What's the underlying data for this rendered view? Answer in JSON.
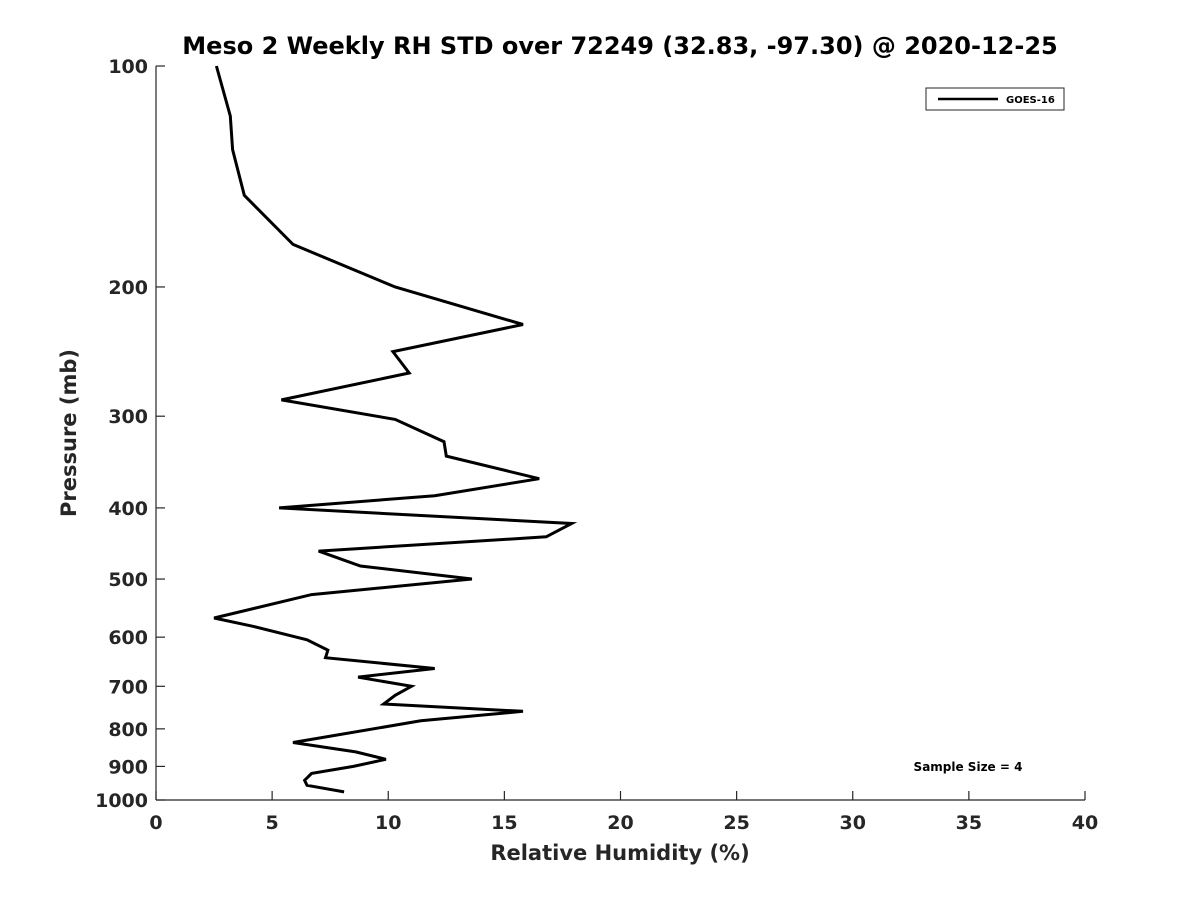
{
  "chart_data": {
    "type": "line",
    "title": "Meso 2 Weekly RH STD over 72249 (32.83, -97.30) @ 2020-12-25",
    "xlabel": "Relative Humidity (%)",
    "ylabel": "Pressure (mb)",
    "xlim": [
      0,
      40
    ],
    "ylim": [
      100,
      1000
    ],
    "yscale": "log",
    "y_reversed": true,
    "x_ticks": [
      "0",
      "5",
      "10",
      "15",
      "20",
      "25",
      "30",
      "35",
      "40"
    ],
    "y_ticks": [
      "100",
      "200",
      "300",
      "400",
      "500",
      "600",
      "700",
      "800",
      "900",
      "1000"
    ],
    "grid": false,
    "legend": {
      "position": "top-right",
      "entries": [
        "GOES-16"
      ]
    },
    "annotation": "Sample Size = 4",
    "colors": {
      "series": "#000000",
      "axes": "#262626"
    },
    "series": [
      {
        "name": "GOES-16",
        "x": [
          2.6,
          3.2,
          3.3,
          3.8,
          5.9,
          10.3,
          15.8,
          10.2,
          10.9,
          5.4,
          10.3,
          12.4,
          12.5,
          16.5,
          12.0,
          5.3,
          17.9,
          16.8,
          7.0,
          8.8,
          13.6,
          6.7,
          2.5,
          4.2,
          6.5,
          7.4,
          7.3,
          12.0,
          8.7,
          11.0,
          10.3,
          9.8,
          15.8,
          11.4,
          5.9,
          8.6,
          9.9,
          8.5,
          6.7,
          6.4,
          6.5,
          8.1
        ],
        "y": [
          100,
          117,
          130,
          150,
          175,
          200,
          225,
          245,
          262,
          285,
          303,
          325,
          340,
          365,
          385,
          400,
          420,
          438,
          458,
          480,
          500,
          525,
          565,
          580,
          605,
          625,
          640,
          662,
          680,
          700,
          720,
          740,
          757,
          780,
          835,
          860,
          880,
          900,
          920,
          940,
          955,
          975
        ]
      }
    ]
  }
}
